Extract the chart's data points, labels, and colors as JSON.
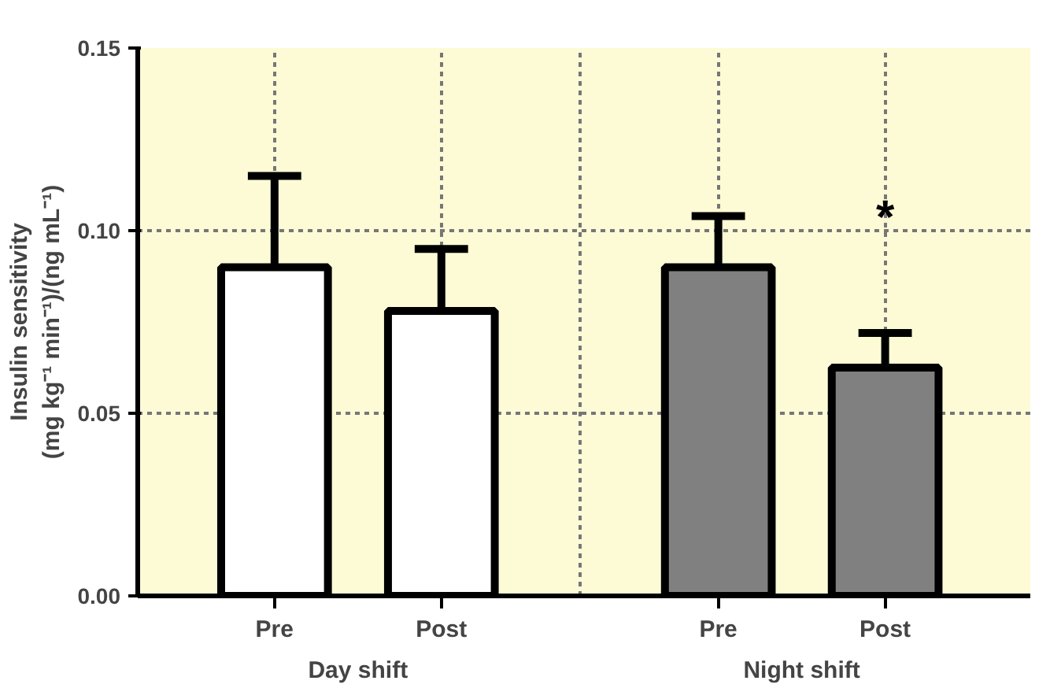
{
  "chart_data": {
    "type": "bar",
    "ylabel": "Insulin sensitivity\n(mg kg⁻¹ min⁻¹)/(ng mL⁻¹)",
    "categories": [
      "Pre",
      "Post",
      "Pre",
      "Post"
    ],
    "series": [
      {
        "colors": [
          "#ffffff",
          "#ffffff",
          "#808080",
          "#808080"
        ],
        "values": [
          0.09,
          0.078,
          0.09,
          0.0625
        ],
        "errors": [
          [
            0.09,
            0.115
          ],
          [
            0.078,
            0.095
          ],
          [
            0.09,
            0.104
          ],
          [
            0.0625,
            0.072
          ]
        ]
      }
    ],
    "ylim": [
      0,
      0.15
    ],
    "yticks": [
      {
        "value": 0,
        "label": "0.00"
      },
      {
        "value": 0.05,
        "label": "0.05"
      },
      {
        "value": 0.1,
        "label": "0.10"
      },
      {
        "value": 0.15,
        "label": "0.15"
      }
    ],
    "annotations": [
      "Day shift",
      "Night shift",
      "*"
    ],
    "grid": true
  }
}
